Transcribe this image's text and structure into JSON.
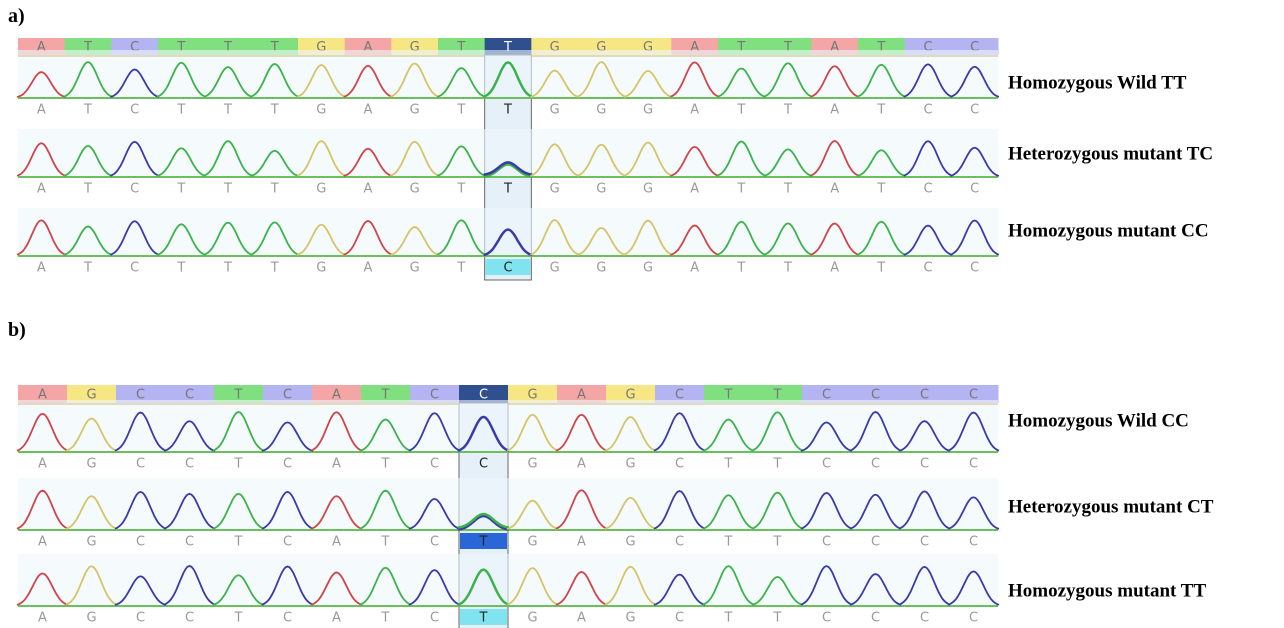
{
  "panels": [
    {
      "label": "a)",
      "sequence": [
        "A",
        "T",
        "C",
        "T",
        "T",
        "T",
        "G",
        "A",
        "G",
        "T",
        "T",
        "G",
        "G",
        "G",
        "A",
        "T",
        "T",
        "A",
        "T",
        "C",
        "C"
      ],
      "tracks": [
        {
          "label": "Homozygous Wild TT",
          "calls": [
            "A",
            "T",
            "C",
            "T",
            "T",
            "T",
            "G",
            "A",
            "G",
            "T",
            "T",
            "G",
            "G",
            "G",
            "A",
            "T",
            "T",
            "A",
            "T",
            "C",
            "C"
          ]
        },
        {
          "label": "Heterozygous mutant TC",
          "calls": [
            "A",
            "T",
            "C",
            "T",
            "T",
            "T",
            "G",
            "A",
            "G",
            "T",
            "T",
            "G",
            "G",
            "G",
            "A",
            "T",
            "T",
            "A",
            "T",
            "C",
            "C"
          ]
        },
        {
          "label": "Homozygous mutant CC",
          "calls": [
            "A",
            "T",
            "C",
            "T",
            "T",
            "T",
            "G",
            "A",
            "G",
            "T",
            "C",
            "G",
            "G",
            "G",
            "A",
            "T",
            "T",
            "A",
            "T",
            "C",
            "C"
          ]
        }
      ]
    },
    {
      "label": "b)",
      "sequence": [
        "A",
        "G",
        "C",
        "C",
        "T",
        "C",
        "A",
        "T",
        "C",
        "C",
        "G",
        "A",
        "G",
        "C",
        "T",
        "T",
        "C",
        "C",
        "C",
        "C"
      ],
      "tracks": [
        {
          "label": "Homozygous Wild CC",
          "calls": [
            "A",
            "G",
            "C",
            "C",
            "T",
            "C",
            "A",
            "T",
            "C",
            "C",
            "G",
            "A",
            "G",
            "C",
            "T",
            "T",
            "C",
            "C",
            "C",
            "C"
          ]
        },
        {
          "label": "Heterozygous mutant CT",
          "calls": [
            "A",
            "G",
            "C",
            "C",
            "T",
            "C",
            "A",
            "T",
            "C",
            "T",
            "G",
            "A",
            "G",
            "C",
            "T",
            "T",
            "C",
            "C",
            "C",
            "C"
          ]
        },
        {
          "label": "Homozygous mutant TT",
          "calls": [
            "A",
            "G",
            "C",
            "C",
            "T",
            "C",
            "A",
            "T",
            "C",
            "T",
            "G",
            "A",
            "G",
            "C",
            "T",
            "T",
            "C",
            "C",
            "C",
            "C"
          ]
        }
      ]
    }
  ]
}
